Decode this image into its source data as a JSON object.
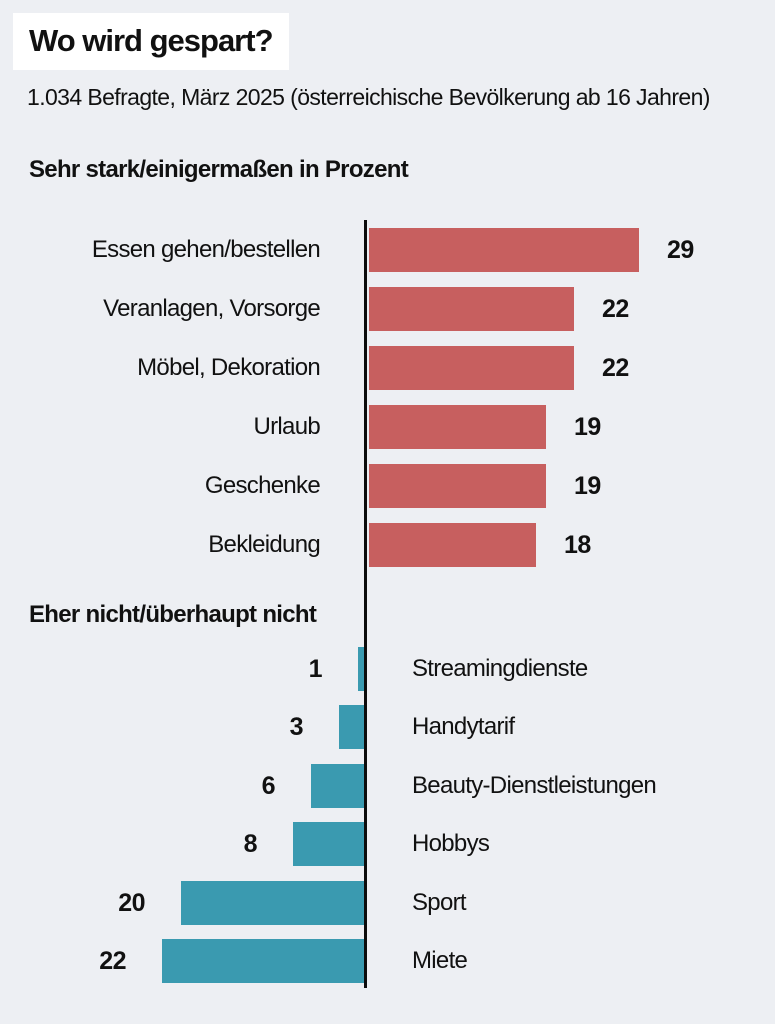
{
  "title": "Wo wird gespart?",
  "subtitle": "1.034 Befragte, März 2025 (österreichische Bevölkerung ab 16 Jahren)",
  "colors": {
    "background": "#edeff3",
    "title_background": "#ffffff",
    "text": "#111111",
    "axis": "#0c0c0c",
    "save_bar": "#c75f5f",
    "nosave_bar": "#3a9ab0"
  },
  "chart_data": {
    "type": "bar",
    "orientation": "horizontal",
    "value_unit": "percent",
    "xlim": [
      0,
      31
    ],
    "grid": false,
    "series": [
      {
        "name": "Sehr stark/einigermaßen in Prozent",
        "direction": "right",
        "color": "#c75f5f",
        "items": [
          {
            "label": "Essen gehen/bestellen",
            "value": 29
          },
          {
            "label": "Veranlagen, Vorsorge",
            "value": 22
          },
          {
            "label": "Möbel, Dekoration",
            "value": 22
          },
          {
            "label": "Urlaub",
            "value": 19
          },
          {
            "label": "Geschenke",
            "value": 19
          },
          {
            "label": "Bekleidung",
            "value": 18
          }
        ]
      },
      {
        "name": "Eher nicht/überhaupt nicht",
        "direction": "left",
        "color": "#3a9ab0",
        "items": [
          {
            "label": "Streamingdienste",
            "value": 1
          },
          {
            "label": "Handytarif",
            "value": 3
          },
          {
            "label": "Beauty-Dienstleistungen",
            "value": 6
          },
          {
            "label": "Hobbys",
            "value": 8
          },
          {
            "label": "Sport",
            "value": 20
          },
          {
            "label": "Miete",
            "value": 22
          }
        ]
      }
    ]
  }
}
